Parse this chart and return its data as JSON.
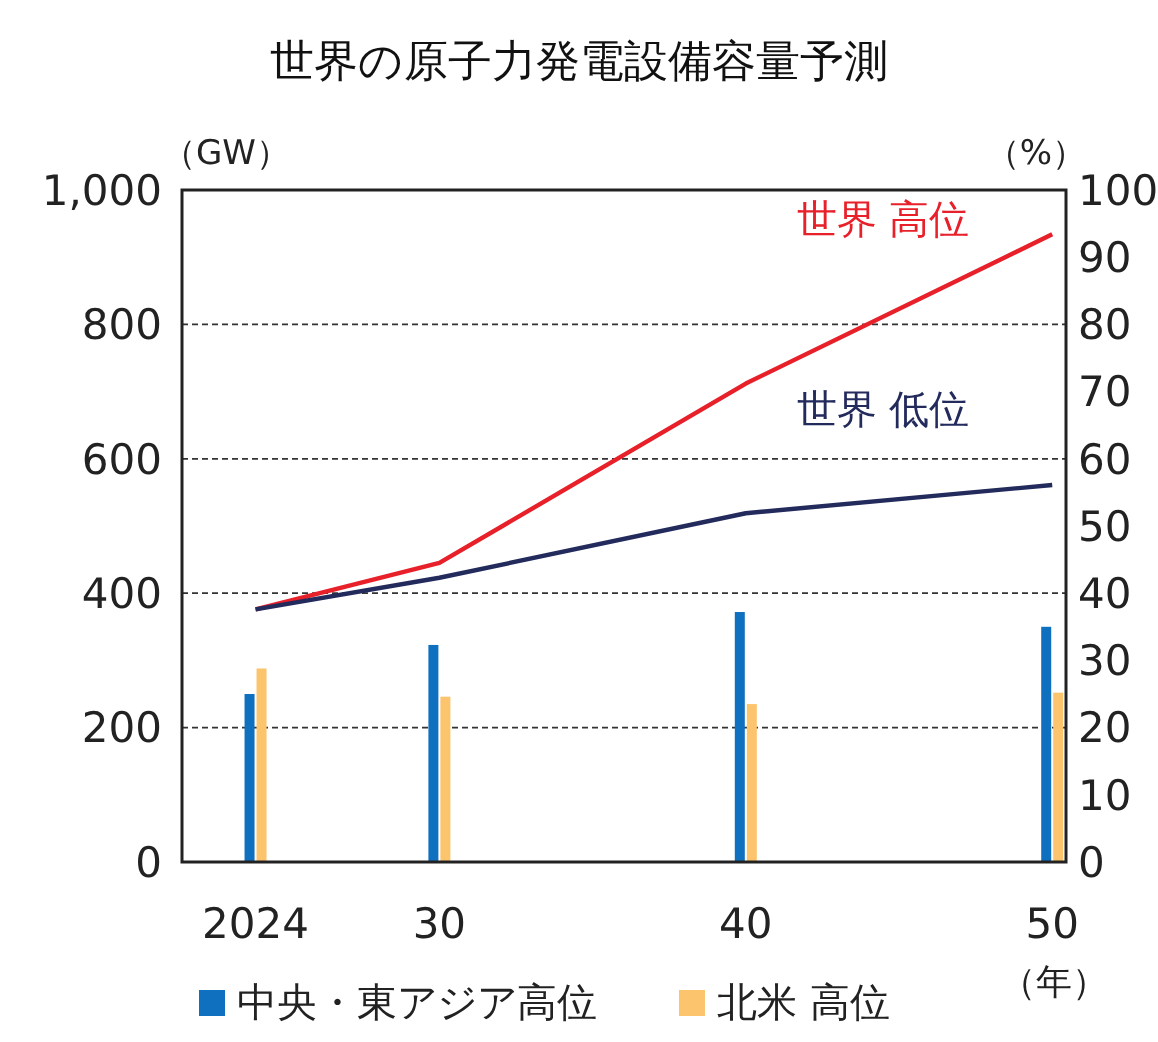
{
  "chart_data": {
    "type": "line",
    "title": "世界の原子力発電設備容量予測",
    "ylabel": "（GW）",
    "y2label": "（%）",
    "xlabel": "（年）",
    "xlim": [
      2021.6,
      2050.45
    ],
    "xticks": [
      {
        "value": 2024,
        "label": "2024"
      },
      {
        "value": 2030,
        "label": "30"
      },
      {
        "value": 2040,
        "label": "40"
      },
      {
        "value": 2050,
        "label": "50"
      }
    ],
    "x": [
      2024,
      2030,
      2040,
      2050
    ],
    "ylim": [
      0,
      1000
    ],
    "yticks": [
      0,
      200,
      400,
      600,
      800,
      {
        "value": 1000,
        "label": "1,000"
      }
    ],
    "y2lim": [
      0,
      100
    ],
    "y2ticks": [
      0,
      10,
      20,
      30,
      40,
      50,
      60,
      70,
      80,
      90,
      100
    ],
    "grid": "y",
    "legend": "bottom",
    "series": [
      {
        "type": "bar",
        "axis": "y2",
        "name": "中央・東アジア高位",
        "color": "#1070c0",
        "values": [
          25,
          32.3,
          37.2,
          35
        ]
      },
      {
        "type": "bar",
        "axis": "y2",
        "name": "北米  高位",
        "color": "#fcc46c",
        "values": [
          28.8,
          24.6,
          23.5,
          25.2
        ]
      },
      {
        "name": "世界 高位",
        "color": "#e8202a",
        "values": [
          376,
          445,
          712,
          934
        ]
      },
      {
        "name": "世界 低位",
        "color": "#232a5c",
        "values": [
          376,
          423,
          519,
          561
        ]
      }
    ]
  }
}
